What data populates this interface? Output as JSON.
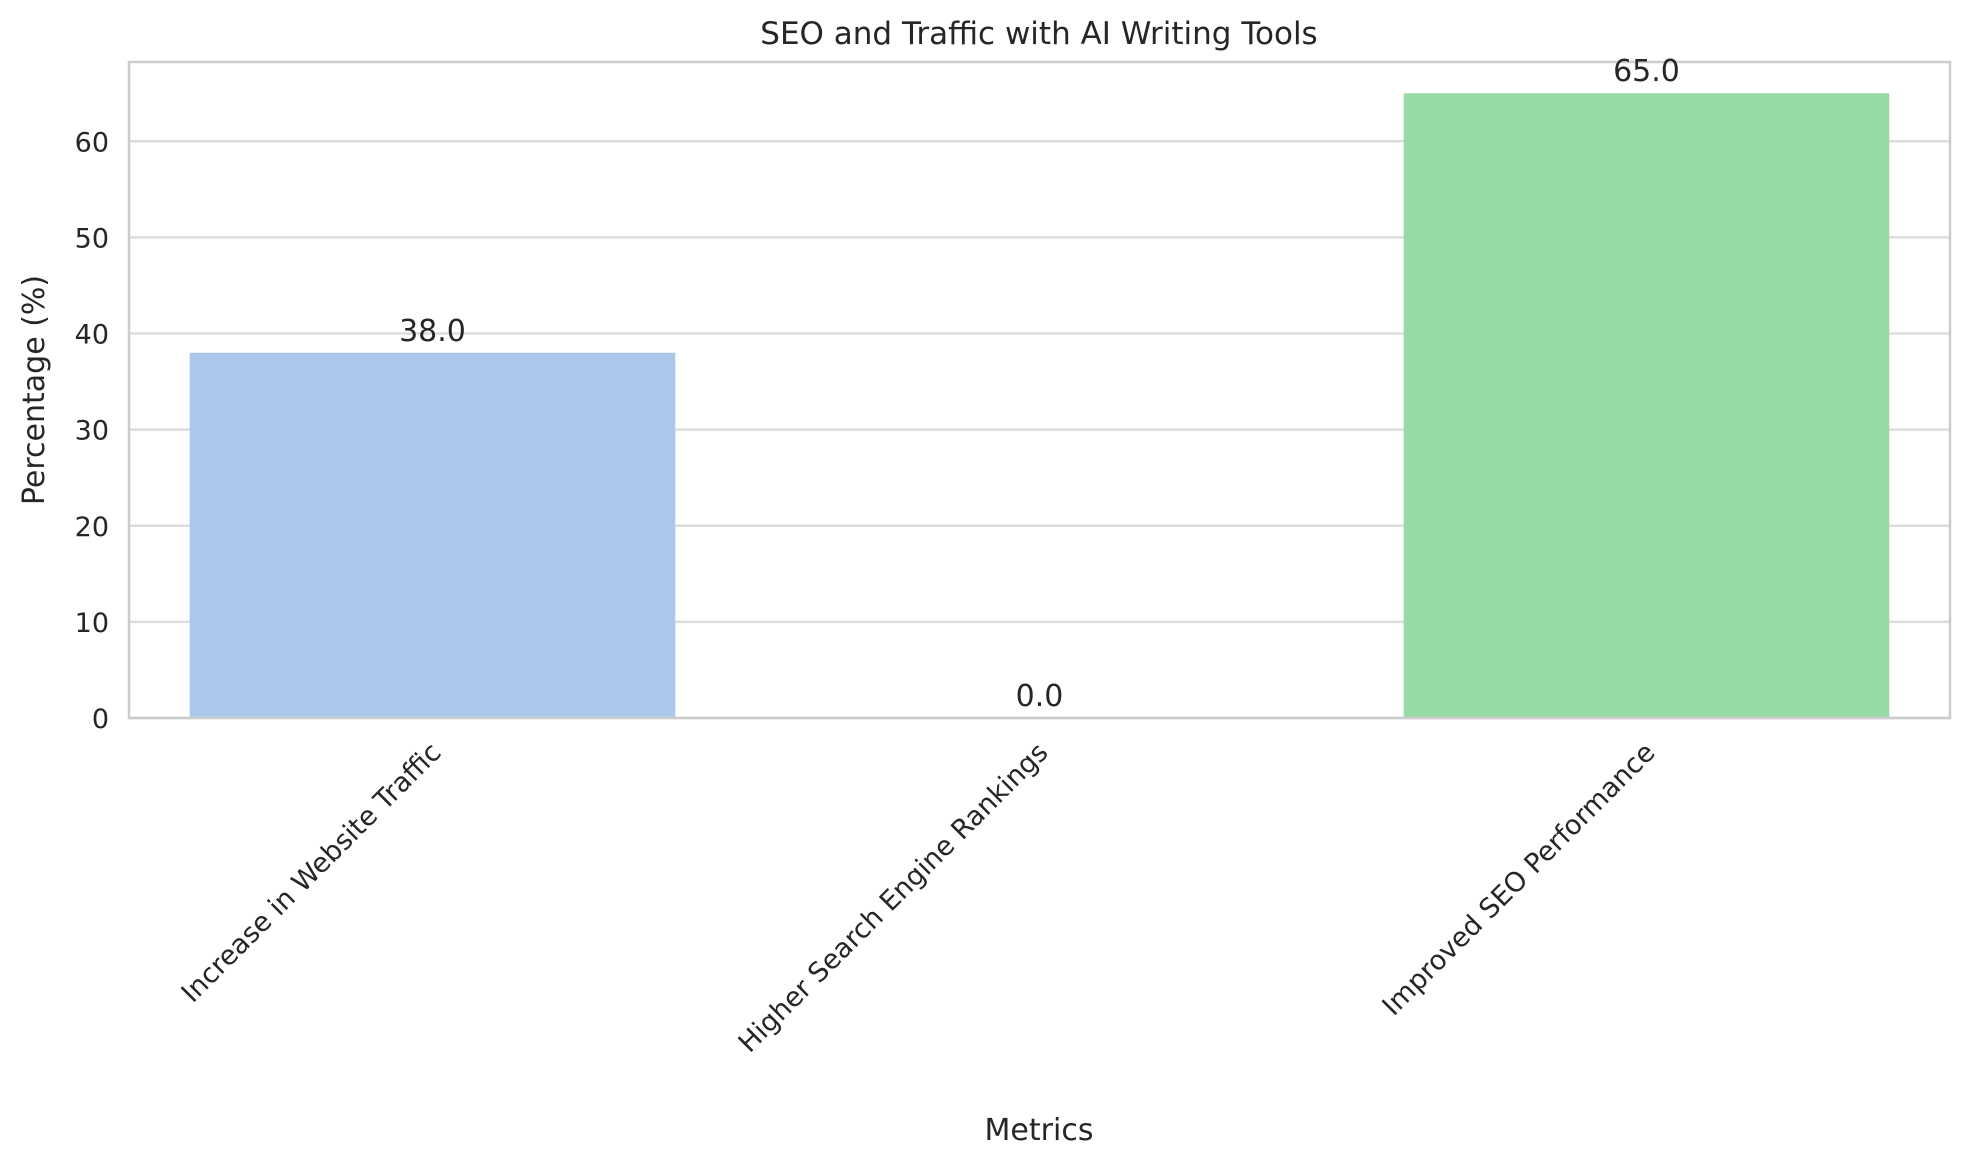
{
  "chart_data": {
    "type": "bar",
    "title": "SEO and Traffic with AI Writing Tools",
    "xlabel": "Metrics",
    "ylabel": "Percentage (%)",
    "categories": [
      "Increase in Website Traffic",
      "Higher Search Engine Rankings",
      "Improved SEO Performance"
    ],
    "values": [
      38.0,
      0.0,
      65.0
    ],
    "data_labels": [
      "38.0",
      "0.0",
      "65.0"
    ],
    "colors": [
      "#abc8ec",
      "#f7b98c",
      "#98daa5"
    ],
    "ylim": [
      0,
      68.25
    ],
    "yticks": [
      0,
      10,
      20,
      30,
      40,
      50,
      60
    ],
    "ytick_labels": [
      "0",
      "10",
      "20",
      "30",
      "40",
      "50",
      "60"
    ],
    "grid": true,
    "xtick_rotation": 45
  }
}
